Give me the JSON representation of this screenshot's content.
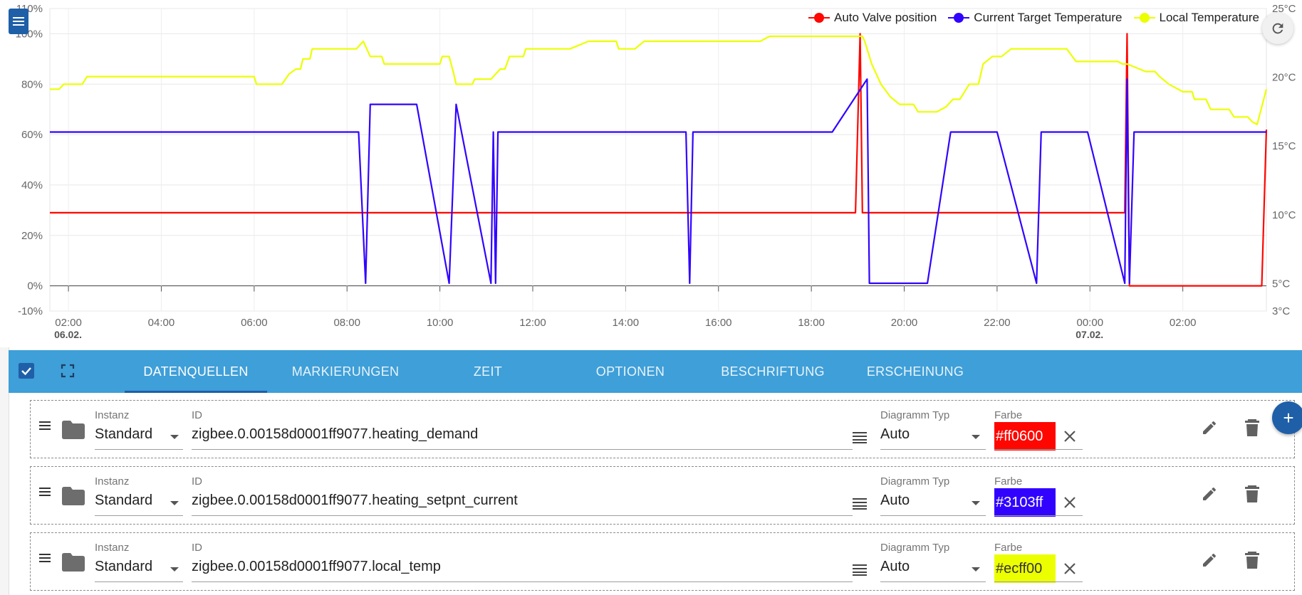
{
  "chart_data": {
    "type": "line",
    "left_axis": {
      "ticks": [
        "110%",
        "100%",
        "80%",
        "60%",
        "40%",
        "20%",
        "0%",
        "-10%"
      ],
      "range": [
        -10,
        110
      ]
    },
    "right_axis": {
      "ticks": [
        "25°C",
        "20°C",
        "15°C",
        "10°C",
        "5°C",
        "3°C"
      ],
      "range": [
        3,
        25
      ]
    },
    "x_ticks": [
      {
        "time": "02:00",
        "date": "06.02."
      },
      {
        "time": "04:00",
        "date": ""
      },
      {
        "time": "06:00",
        "date": ""
      },
      {
        "time": "08:00",
        "date": ""
      },
      {
        "time": "10:00",
        "date": ""
      },
      {
        "time": "12:00",
        "date": ""
      },
      {
        "time": "14:00",
        "date": ""
      },
      {
        "time": "16:00",
        "date": ""
      },
      {
        "time": "18:00",
        "date": ""
      },
      {
        "time": "20:00",
        "date": ""
      },
      {
        "time": "22:00",
        "date": ""
      },
      {
        "time": "00:00",
        "date": "07.02."
      },
      {
        "time": "02:00",
        "date": ""
      }
    ],
    "x_range_hours": [
      1.6,
      27.8
    ],
    "grid": true,
    "legend_position": "top-right",
    "series": [
      {
        "name": "Auto Valve position",
        "color": "#ff0600",
        "axis": "left",
        "points": [
          [
            1.6,
            29
          ],
          [
            18.95,
            29
          ],
          [
            19.05,
            100
          ],
          [
            19.1,
            29
          ],
          [
            24.75,
            29
          ],
          [
            24.8,
            100
          ],
          [
            24.85,
            0
          ],
          [
            27.7,
            0
          ],
          [
            27.8,
            62
          ]
        ]
      },
      {
        "name": "Current Target Temperature",
        "color": "#3103ff",
        "axis": "left",
        "points": [
          [
            1.6,
            61
          ],
          [
            8.25,
            61
          ],
          [
            8.4,
            1
          ],
          [
            8.5,
            72
          ],
          [
            9.5,
            72
          ],
          [
            10.2,
            1
          ],
          [
            10.35,
            72
          ],
          [
            11.1,
            1
          ],
          [
            11.15,
            61
          ],
          [
            11.2,
            1
          ],
          [
            11.25,
            61
          ],
          [
            15.3,
            61
          ],
          [
            15.38,
            1
          ],
          [
            15.45,
            61
          ],
          [
            18.45,
            61
          ],
          [
            19.2,
            82
          ],
          [
            19.25,
            1
          ],
          [
            19.4,
            1
          ],
          [
            20.5,
            1
          ],
          [
            21.0,
            61
          ],
          [
            22.0,
            61
          ],
          [
            22.85,
            1
          ],
          [
            22.95,
            61
          ],
          [
            23.95,
            61
          ],
          [
            24.75,
            1
          ],
          [
            24.8,
            82
          ],
          [
            24.85,
            1
          ],
          [
            24.95,
            61
          ],
          [
            27.8,
            61
          ]
        ]
      },
      {
        "name": "Local Temperature",
        "color": "#ecff00",
        "axis": "right",
        "points": [
          [
            1.6,
            78
          ],
          [
            1.8,
            78
          ],
          [
            1.9,
            80
          ],
          [
            2.3,
            80
          ],
          [
            2.4,
            83
          ],
          [
            6.0,
            83
          ],
          [
            6.05,
            80
          ],
          [
            6.6,
            80
          ],
          [
            6.75,
            84
          ],
          [
            6.9,
            86
          ],
          [
            7.0,
            86
          ],
          [
            7.05,
            90
          ],
          [
            7.2,
            90
          ],
          [
            7.25,
            94
          ],
          [
            8.2,
            94
          ],
          [
            8.35,
            97
          ],
          [
            8.5,
            91
          ],
          [
            8.75,
            91
          ],
          [
            8.8,
            88
          ],
          [
            10.0,
            88
          ],
          [
            10.05,
            91
          ],
          [
            10.2,
            91
          ],
          [
            10.3,
            84
          ],
          [
            10.35,
            80
          ],
          [
            10.7,
            80
          ],
          [
            10.75,
            82
          ],
          [
            11.1,
            82
          ],
          [
            11.2,
            84
          ],
          [
            11.3,
            86
          ],
          [
            11.4,
            86
          ],
          [
            11.5,
            91
          ],
          [
            11.8,
            91
          ],
          [
            11.85,
            94
          ],
          [
            12.8,
            94
          ],
          [
            13.2,
            97
          ],
          [
            13.8,
            97
          ],
          [
            13.85,
            94
          ],
          [
            14.2,
            94
          ],
          [
            14.4,
            97
          ],
          [
            16.9,
            97
          ],
          [
            17.1,
            99
          ],
          [
            19.1,
            99
          ],
          [
            19.15,
            97
          ],
          [
            19.3,
            88
          ],
          [
            19.5,
            80
          ],
          [
            19.7,
            75
          ],
          [
            19.9,
            72
          ],
          [
            20.2,
            72
          ],
          [
            20.3,
            69
          ],
          [
            20.7,
            69
          ],
          [
            20.9,
            71
          ],
          [
            21.05,
            74
          ],
          [
            21.2,
            74
          ],
          [
            21.3,
            77
          ],
          [
            21.4,
            80
          ],
          [
            21.6,
            80
          ],
          [
            21.7,
            88
          ],
          [
            21.9,
            91
          ],
          [
            22.1,
            91
          ],
          [
            22.3,
            94
          ],
          [
            23.5,
            94
          ],
          [
            23.7,
            89
          ],
          [
            24.6,
            89
          ],
          [
            24.7,
            88
          ],
          [
            24.8,
            88
          ],
          [
            25.2,
            85
          ],
          [
            25.4,
            85
          ],
          [
            25.5,
            83
          ],
          [
            25.7,
            80
          ],
          [
            26.0,
            77
          ],
          [
            26.2,
            77
          ],
          [
            26.25,
            74
          ],
          [
            26.5,
            74
          ],
          [
            26.6,
            70
          ],
          [
            27.0,
            70
          ],
          [
            27.1,
            67
          ],
          [
            27.4,
            67
          ],
          [
            27.5,
            65
          ],
          [
            27.6,
            64
          ],
          [
            27.8,
            78
          ]
        ]
      }
    ]
  },
  "tabs": [
    {
      "label": "DATENQUELLEN",
      "active": true
    },
    {
      "label": "MARKIERUNGEN",
      "active": false
    },
    {
      "label": "ZEIT",
      "active": false
    },
    {
      "label": "OPTIONEN",
      "active": false
    },
    {
      "label": "BESCHRIFTUNG",
      "active": false
    },
    {
      "label": "ERSCHEINUNG",
      "active": false
    }
  ],
  "labels": {
    "instanz": "Instanz",
    "id": "ID",
    "diagramm_typ": "Diagramm Typ",
    "farbe": "Farbe"
  },
  "datasources": [
    {
      "instanz": "Standard",
      "id": "zigbee.0.00158d0001ff9077.heating_demand",
      "diagramm_typ": "Auto",
      "farbe": "#ff0600",
      "text_color": "#ffffff"
    },
    {
      "instanz": "Standard",
      "id": "zigbee.0.00158d0001ff9077.heating_setpnt_current",
      "diagramm_typ": "Auto",
      "farbe": "#3103ff",
      "text_color": "#ffffff"
    },
    {
      "instanz": "Standard",
      "id": "zigbee.0.00158d0001ff9077.local_temp",
      "diagramm_typ": "Auto",
      "farbe": "#ecff00",
      "text_color": "#333333"
    }
  ],
  "icons": {
    "menu": "menu-icon",
    "refresh": "refresh-icon",
    "checkbox": "checkbox-checked-icon",
    "fullscreen": "fullscreen-icon",
    "add": "plus-icon"
  },
  "colors": {
    "tabbar": "#3f9fd8",
    "accent": "#1e5fa8"
  }
}
